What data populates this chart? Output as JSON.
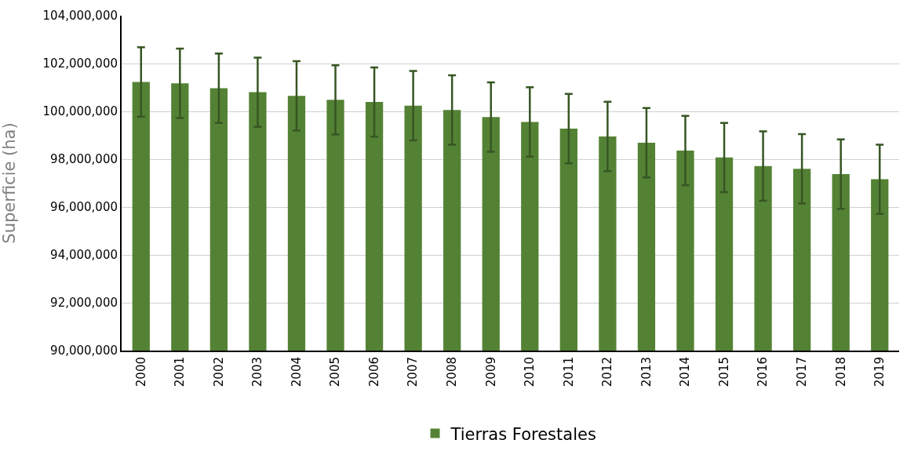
{
  "chart_data": {
    "type": "bar",
    "ylabel": "Superficie (ha)",
    "categories": [
      "2000",
      "2001",
      "2002",
      "2003",
      "2004",
      "2005",
      "2006",
      "2007",
      "2008",
      "2009",
      "2010",
      "2011",
      "2012",
      "2013",
      "2014",
      "2015",
      "2016",
      "2017",
      "2018",
      "2019"
    ],
    "series": [
      {
        "name": "Tierras Forestales",
        "color": "#548235",
        "values": [
          101230000,
          101170000,
          100970000,
          100800000,
          100650000,
          100480000,
          100390000,
          100240000,
          100060000,
          99760000,
          99560000,
          99280000,
          98950000,
          98690000,
          98360000,
          98070000,
          97710000,
          97600000,
          97380000,
          97160000
        ],
        "errors": [
          1450000,
          1450000,
          1450000,
          1450000,
          1450000,
          1450000,
          1450000,
          1450000,
          1450000,
          1450000,
          1450000,
          1450000,
          1450000,
          1450000,
          1450000,
          1450000,
          1450000,
          1450000,
          1450000,
          1450000
        ]
      }
    ],
    "ylim": [
      90000000,
      104000000
    ],
    "yticks": [
      {
        "value": 90000000,
        "label": "90,000,000"
      },
      {
        "value": 92000000,
        "label": "92,000,000"
      },
      {
        "value": 94000000,
        "label": "94,000,000"
      },
      {
        "value": 96000000,
        "label": "96,000,000"
      },
      {
        "value": 98000000,
        "label": "98,000,000"
      },
      {
        "value": 100000000,
        "label": "100,000,000"
      },
      {
        "value": 102000000,
        "label": "102,000,000"
      },
      {
        "value": 104000000,
        "label": "104,000,000"
      }
    ],
    "grid": "y",
    "legend": "bottom"
  }
}
